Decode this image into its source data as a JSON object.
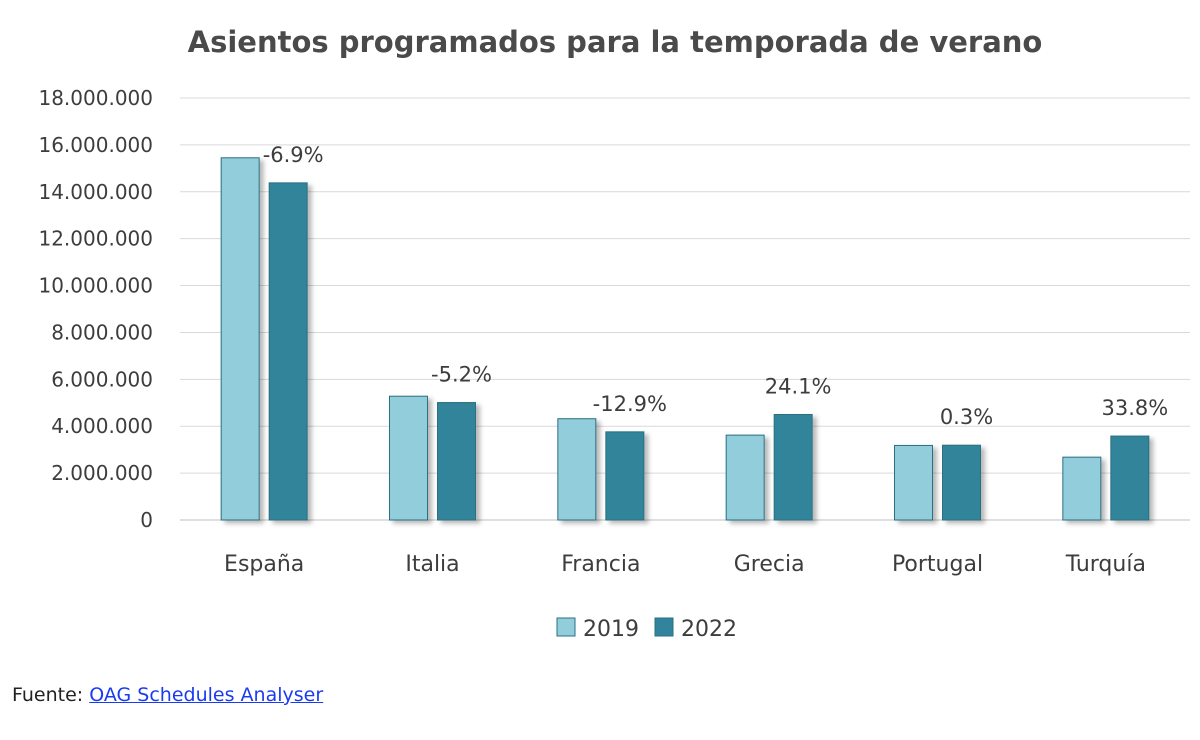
{
  "chart_data": {
    "type": "bar",
    "title": "Asientos programados para la temporada de verano",
    "categories": [
      "España",
      "Italia",
      "Francia",
      "Grecia",
      "Portugal",
      "Turquía"
    ],
    "series": [
      {
        "name": "2019",
        "color": "#92cddc",
        "values": [
          15450000,
          5280000,
          4320000,
          3620000,
          3180000,
          2680000
        ]
      },
      {
        "name": "2022",
        "color": "#31849b",
        "values": [
          14380000,
          5010000,
          3760000,
          4500000,
          3190000,
          3580000
        ]
      }
    ],
    "change_labels": [
      "-6.9%",
      "-5.2%",
      "-12.9%",
      "24.1%",
      "0.3%",
      "33.8%"
    ],
    "ylim": [
      0,
      18000000
    ],
    "yticks": [
      0,
      2000000,
      4000000,
      6000000,
      8000000,
      10000000,
      12000000,
      14000000,
      16000000,
      18000000
    ],
    "ytick_labels": [
      "0",
      "2.000.000",
      "4.000.000",
      "6.000.000",
      "8.000.000",
      "10.000.000",
      "12.000.000",
      "14.000.000",
      "16.000.000",
      "18.000.000"
    ],
    "grid": true,
    "legend_position": "bottom"
  },
  "source": {
    "prefix": "Fuente: ",
    "link_text": "OAG Schedules Analyser"
  }
}
